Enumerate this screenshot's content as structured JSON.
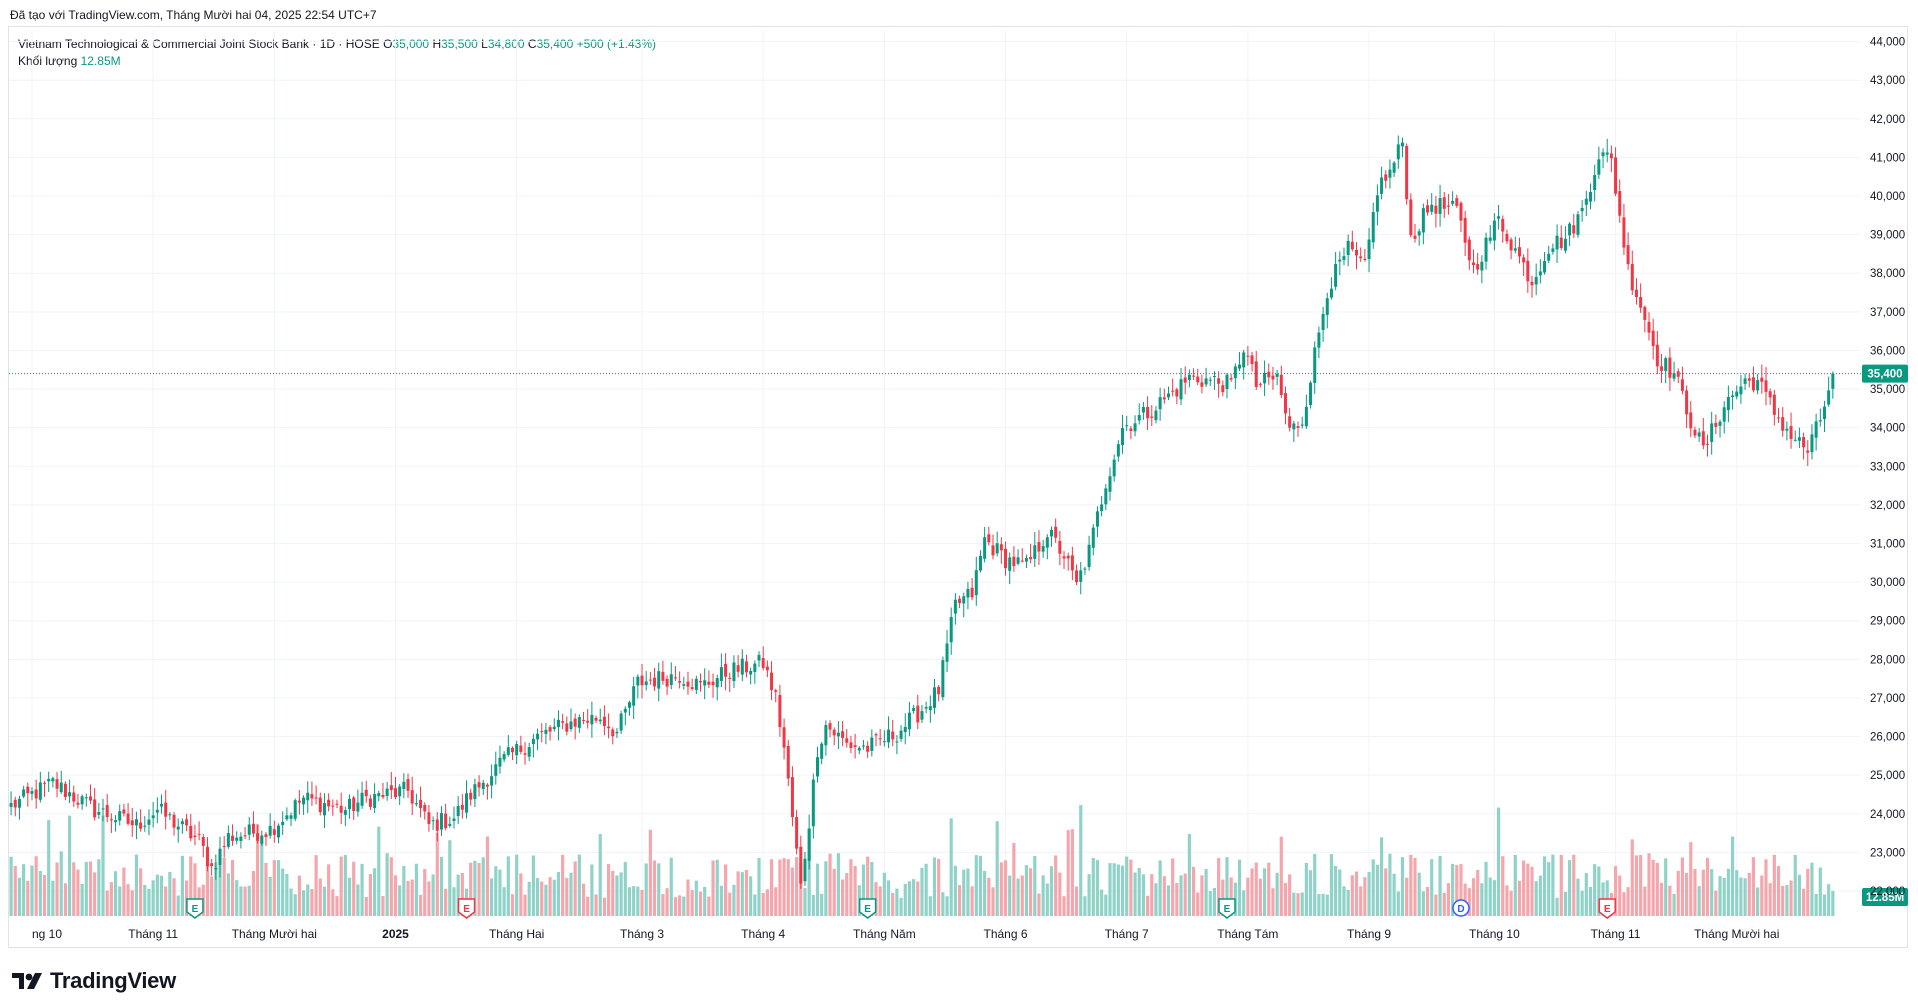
{
  "caption": "Đã tạo với TradingView.com, Tháng Mười hai 04, 2025 22:54 UTC+7",
  "legend": {
    "symbol": "Vietnam Technological & Commercial Joint Stock Bank · 1D · HOSE",
    "o_label": "O",
    "o_value": "35,000",
    "h_label": "H",
    "h_value": "35,500",
    "l_label": "L",
    "l_value": "34,800",
    "c_label": "C",
    "c_value": "35,400",
    "change": "+500 (+1.43%)",
    "volume_label": "Khối lượng",
    "volume_value": "12.85M"
  },
  "brand": {
    "name": "TradingView"
  },
  "colors": {
    "up": "#089981",
    "down": "#f23645",
    "vol_up": "#8fd3c8",
    "vol_down": "#f5a6ac",
    "grid": "#f0f3fa",
    "axis_text": "#131722"
  },
  "chart_data": {
    "type": "candlestick",
    "title": "Vietnam Technological & Commercial Joint Stock Bank · 1D · HOSE",
    "y_range": [
      21300,
      44300
    ],
    "y_ticks": [
      "44,000",
      "43,000",
      "42,000",
      "41,000",
      "40,000",
      "39,000",
      "38,000",
      "37,000",
      "36,000",
      "35,000",
      "34,000",
      "33,000",
      "32,000",
      "31,000",
      "30,000",
      "29,000",
      "28,000",
      "27,000",
      "26,000",
      "25,000",
      "24,000",
      "23,000",
      "22,000"
    ],
    "x_ticks": [
      "ng 10",
      "Tháng 11",
      "Tháng Mười hai",
      "2025",
      "Tháng Hai",
      "Tháng 3",
      "Tháng 4",
      "Tháng Năm",
      "Tháng 6",
      "Tháng 7",
      "Tháng Tám",
      "Tháng 9",
      "Tháng 10",
      "Tháng 11",
      "Tháng Mười hai"
    ],
    "last_price_label": "35,400",
    "last_price": 35400,
    "volume_label": "12.85M",
    "events": [
      {
        "type": "E",
        "kind": "earnings",
        "color": "green"
      },
      {
        "type": "E",
        "kind": "earnings",
        "color": "red"
      },
      {
        "type": "E",
        "kind": "earnings",
        "color": "green"
      },
      {
        "type": "E",
        "kind": "earnings",
        "color": "green"
      },
      {
        "type": "D",
        "kind": "dividend",
        "color": "blue"
      },
      {
        "type": "E",
        "kind": "earnings",
        "color": "red"
      }
    ],
    "keypoints": [
      [
        0,
        24200
      ],
      [
        10,
        24800
      ],
      [
        20,
        24100
      ],
      [
        30,
        23700
      ],
      [
        35,
        24100
      ],
      [
        45,
        23300
      ],
      [
        48,
        22600
      ],
      [
        52,
        23400
      ],
      [
        62,
        23600
      ],
      [
        70,
        24400
      ],
      [
        80,
        24100
      ],
      [
        85,
        24400
      ],
      [
        95,
        24600
      ],
      [
        100,
        23700
      ],
      [
        106,
        23900
      ],
      [
        110,
        24500
      ],
      [
        118,
        25400
      ],
      [
        126,
        26000
      ],
      [
        135,
        26400
      ],
      [
        141,
        26500
      ],
      [
        145,
        26100
      ],
      [
        150,
        27400
      ],
      [
        160,
        27600
      ],
      [
        165,
        27300
      ],
      [
        172,
        27700
      ],
      [
        180,
        27900
      ],
      [
        183,
        27000
      ],
      [
        185,
        25700
      ],
      [
        187,
        23900
      ],
      [
        189,
        22100
      ],
      [
        191,
        23800
      ],
      [
        193,
        25700
      ],
      [
        195,
        26300
      ],
      [
        200,
        25800
      ],
      [
        205,
        25700
      ],
      [
        212,
        26100
      ],
      [
        218,
        26700
      ],
      [
        222,
        27200
      ],
      [
        226,
        29400
      ],
      [
        230,
        29700
      ],
      [
        233,
        31100
      ],
      [
        238,
        30600
      ],
      [
        243,
        30400
      ],
      [
        248,
        31300
      ],
      [
        252,
        30700
      ],
      [
        255,
        29900
      ],
      [
        258,
        30800
      ],
      [
        262,
        32600
      ],
      [
        266,
        34000
      ],
      [
        272,
        34400
      ],
      [
        278,
        34900
      ],
      [
        282,
        35300
      ],
      [
        288,
        35200
      ],
      [
        292,
        35100
      ],
      [
        295,
        36100
      ],
      [
        298,
        35100
      ],
      [
        303,
        35300
      ],
      [
        306,
        33900
      ],
      [
        309,
        34200
      ],
      [
        312,
        35900
      ],
      [
        315,
        37600
      ],
      [
        320,
        38600
      ],
      [
        324,
        38100
      ],
      [
        327,
        40200
      ],
      [
        330,
        40600
      ],
      [
        333,
        41400
      ],
      [
        335,
        38900
      ],
      [
        340,
        39800
      ],
      [
        346,
        39600
      ],
      [
        350,
        38100
      ],
      [
        356,
        39400
      ],
      [
        360,
        38600
      ],
      [
        364,
        37800
      ],
      [
        368,
        38700
      ],
      [
        372,
        38900
      ],
      [
        376,
        39600
      ],
      [
        380,
        41100
      ],
      [
        383,
        40900
      ],
      [
        387,
        38100
      ],
      [
        390,
        37200
      ],
      [
        394,
        35800
      ],
      [
        398,
        35400
      ],
      [
        402,
        34200
      ],
      [
        405,
        33400
      ],
      [
        410,
        34600
      ],
      [
        415,
        35200
      ],
      [
        418,
        35200
      ],
      [
        422,
        34400
      ],
      [
        426,
        33800
      ],
      [
        430,
        33400
      ],
      [
        433,
        34200
      ],
      [
        436,
        35400
      ]
    ],
    "bar_count": 437
  }
}
